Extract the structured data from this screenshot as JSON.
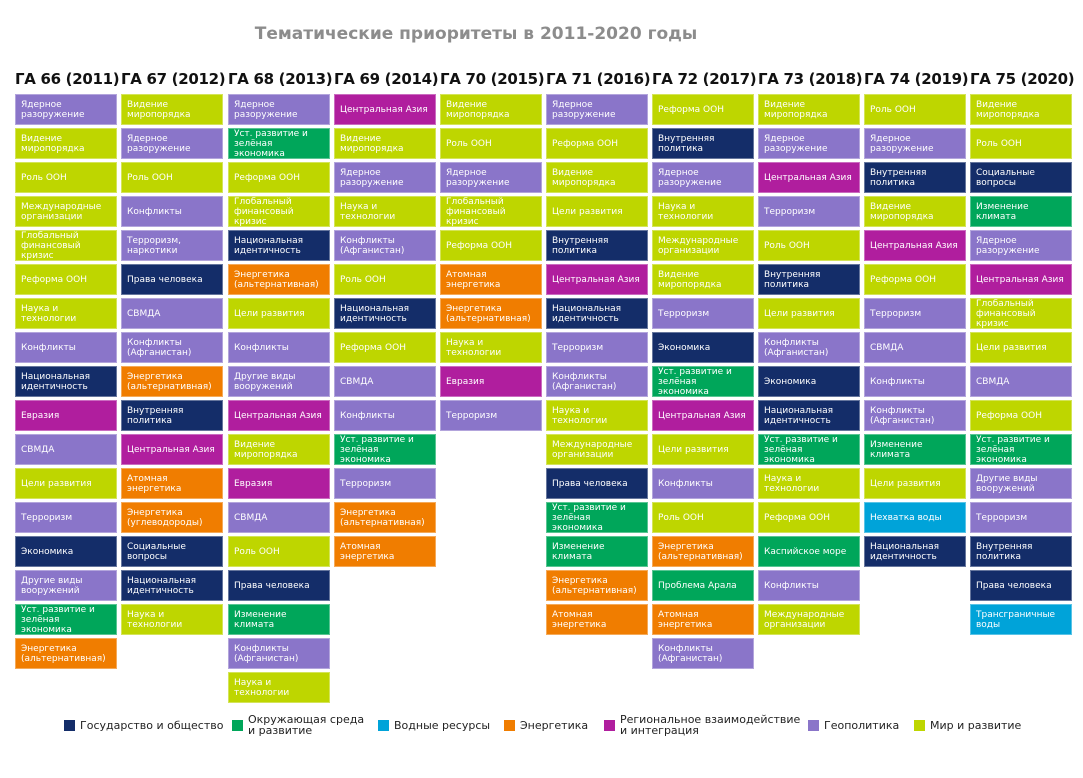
{
  "title": "Тематические приоритеты в 2011-2020 годы",
  "categories": {
    "S": {
      "label": "Государство и общество",
      "color": "#142d69"
    },
    "E": {
      "label": "Окружающая среда\nи развитие",
      "color": "#00a65a"
    },
    "W": {
      "label": "Водные ресурсы",
      "color": "#00a3d9"
    },
    "N": {
      "label": "Энергетика",
      "color": "#f07d00"
    },
    "R": {
      "label": "Региональное взаимодействие\nи интеграция",
      "color": "#b01e9e"
    },
    "G": {
      "label": "Геополитика",
      "color": "#8a75c9"
    },
    "M": {
      "label": "Мир и развитие",
      "color": "#bed600"
    }
  },
  "legend_order": [
    "S",
    "E",
    "W",
    "N",
    "R",
    "G",
    "M"
  ],
  "columns": [
    {
      "header": "ГА 66 (2011)",
      "items": [
        {
          "t": "Ядерное\nразоружение",
          "c": "G"
        },
        {
          "t": "Видение\nмиропорядка",
          "c": "M"
        },
        {
          "t": "Роль ООН",
          "c": "M"
        },
        {
          "t": "Международные\nорганизации",
          "c": "M"
        },
        {
          "t": "Глобальный\nфинансовый кризис",
          "c": "M"
        },
        {
          "t": "Реформа ООН",
          "c": "M"
        },
        {
          "t": "Наука и технологии",
          "c": "M"
        },
        {
          "t": "Конфликты",
          "c": "G"
        },
        {
          "t": "Национальная\nидентичность",
          "c": "S"
        },
        {
          "t": "Евразия",
          "c": "R"
        },
        {
          "t": "СВМДА",
          "c": "G"
        },
        {
          "t": "Цели развития",
          "c": "M"
        },
        {
          "t": "Терроризм",
          "c": "G"
        },
        {
          "t": "Экономика",
          "c": "S"
        },
        {
          "t": "Другие виды\nвооружений",
          "c": "G"
        },
        {
          "t": "Уст. развитие и\nзелёная экономика",
          "c": "E"
        },
        {
          "t": "Энергетика\n(альтернативная)",
          "c": "N"
        }
      ]
    },
    {
      "header": "ГА 67 (2012)",
      "items": [
        {
          "t": "Видение\nмиропорядка",
          "c": "M"
        },
        {
          "t": "Ядерное\nразоружение",
          "c": "G"
        },
        {
          "t": "Роль ООН",
          "c": "M"
        },
        {
          "t": "Конфликты",
          "c": "G"
        },
        {
          "t": "Терроризм,\nнаркотики",
          "c": "G"
        },
        {
          "t": "Права человека",
          "c": "S"
        },
        {
          "t": "СВМДА",
          "c": "G"
        },
        {
          "t": "Конфликты\n(Афганистан)",
          "c": "G"
        },
        {
          "t": "Энергетика\n(альтернативная)",
          "c": "N"
        },
        {
          "t": "Внутренняя\nполитика",
          "c": "S"
        },
        {
          "t": "Центральная Азия",
          "c": "R"
        },
        {
          "t": "Атомная энергетика",
          "c": "N"
        },
        {
          "t": "Энергетика\n(углеводороды)",
          "c": "N"
        },
        {
          "t": "Социальные\nвопросы",
          "c": "S"
        },
        {
          "t": "Национальная\nидентичность",
          "c": "S"
        },
        {
          "t": "Наука и технологии",
          "c": "M"
        }
      ]
    },
    {
      "header": "ГА 68 (2013)",
      "items": [
        {
          "t": "Ядерное\nразоружение",
          "c": "G"
        },
        {
          "t": "Уст. развитие и\nзелёная экономика",
          "c": "E"
        },
        {
          "t": "Реформа ООН",
          "c": "M"
        },
        {
          "t": "Глобальный\nфинансовый кризис",
          "c": "M"
        },
        {
          "t": "Национальная\nидентичность",
          "c": "S"
        },
        {
          "t": "Энергетика\n(альтернативная)",
          "c": "N"
        },
        {
          "t": "Цели развития",
          "c": "M"
        },
        {
          "t": "Конфликты",
          "c": "G"
        },
        {
          "t": "Другие виды\nвооружений",
          "c": "G"
        },
        {
          "t": "Центральная Азия",
          "c": "R"
        },
        {
          "t": "Видение\nмиропорядка",
          "c": "M"
        },
        {
          "t": "Евразия",
          "c": "R"
        },
        {
          "t": "СВМДА",
          "c": "G"
        },
        {
          "t": "Роль ООН",
          "c": "M"
        },
        {
          "t": "Права человека",
          "c": "S"
        },
        {
          "t": "Изменение климата",
          "c": "E"
        },
        {
          "t": "Конфликты\n(Афганистан)",
          "c": "G"
        },
        {
          "t": "Наука и технологии",
          "c": "M"
        }
      ]
    },
    {
      "header": "ГА 69 (2014)",
      "items": [
        {
          "t": "Центральная Азия",
          "c": "R"
        },
        {
          "t": "Видение\nмиропорядка",
          "c": "M"
        },
        {
          "t": "Ядерное\nразоружение",
          "c": "G"
        },
        {
          "t": "Наука и технологии",
          "c": "M"
        },
        {
          "t": "Конфликты\n(Афганистан)",
          "c": "G"
        },
        {
          "t": "Роль ООН",
          "c": "M"
        },
        {
          "t": "Национальная\nидентичность",
          "c": "S"
        },
        {
          "t": "Реформа ООН",
          "c": "M"
        },
        {
          "t": "СВМДА",
          "c": "G"
        },
        {
          "t": "Конфликты",
          "c": "G"
        },
        {
          "t": "Уст. развитие и\nзелёная экономика",
          "c": "E"
        },
        {
          "t": "Терроризм",
          "c": "G"
        },
        {
          "t": "Энергетика\n(альтернативная)",
          "c": "N"
        },
        {
          "t": "Атомная энергетика",
          "c": "N"
        }
      ]
    },
    {
      "header": "ГА 70 (2015)",
      "items": [
        {
          "t": "Видение\nмиропорядка",
          "c": "M"
        },
        {
          "t": "Роль ООН",
          "c": "M"
        },
        {
          "t": "Ядерное\nразоружение",
          "c": "G"
        },
        {
          "t": "Глобальный\nфинансовый кризис",
          "c": "M"
        },
        {
          "t": "Реформа ООН",
          "c": "M"
        },
        {
          "t": "Атомная энергетика",
          "c": "N"
        },
        {
          "t": "Энергетика\n(альтернативная)",
          "c": "N"
        },
        {
          "t": "Наука и технологии",
          "c": "M"
        },
        {
          "t": "Евразия",
          "c": "R"
        },
        {
          "t": "Терроризм",
          "c": "G"
        }
      ]
    },
    {
      "header": "ГА 71 (2016)",
      "items": [
        {
          "t": "Ядерное\nразоружение",
          "c": "G"
        },
        {
          "t": "Реформа ООН",
          "c": "M"
        },
        {
          "t": "Видение\nмиропорядка",
          "c": "M"
        },
        {
          "t": "Цели развития",
          "c": "M"
        },
        {
          "t": "Внутренняя\nполитика",
          "c": "S"
        },
        {
          "t": "Центральная Азия",
          "c": "R"
        },
        {
          "t": "Национальная\nидентичность",
          "c": "S"
        },
        {
          "t": "Терроризм",
          "c": "G"
        },
        {
          "t": "Конфликты\n(Афганистан)",
          "c": "G"
        },
        {
          "t": "Наука и технологии",
          "c": "M"
        },
        {
          "t": "Международные\nорганизации",
          "c": "M"
        },
        {
          "t": "Права человека",
          "c": "S"
        },
        {
          "t": "Уст. развитие и\nзелёная экономика",
          "c": "E"
        },
        {
          "t": "Изменение климата",
          "c": "E"
        },
        {
          "t": "Энергетика\n(альтернативная)",
          "c": "N"
        },
        {
          "t": "Атомная энергетика",
          "c": "N"
        }
      ]
    },
    {
      "header": "ГА 72 (2017)",
      "items": [
        {
          "t": "Реформа ООН",
          "c": "M"
        },
        {
          "t": "Внутренняя\nполитика",
          "c": "S"
        },
        {
          "t": "Ядерное\nразоружение",
          "c": "G"
        },
        {
          "t": "Наука и технологии",
          "c": "M"
        },
        {
          "t": "Международные\nорганизации",
          "c": "M"
        },
        {
          "t": "Видение\nмиропорядка",
          "c": "M"
        },
        {
          "t": "Терроризм",
          "c": "G"
        },
        {
          "t": "Экономика",
          "c": "S"
        },
        {
          "t": "Уст. развитие и\nзелёная экономика",
          "c": "E"
        },
        {
          "t": "Центральная Азия",
          "c": "R"
        },
        {
          "t": "Цели развития",
          "c": "M"
        },
        {
          "t": "Конфликты",
          "c": "G"
        },
        {
          "t": "Роль ООН",
          "c": "M"
        },
        {
          "t": "Энергетика\n(альтернативная)",
          "c": "N"
        },
        {
          "t": "Проблема Арала",
          "c": "E"
        },
        {
          "t": "Атомная энергетика",
          "c": "N"
        },
        {
          "t": "Конфликты\n(Афганистан)",
          "c": "G"
        }
      ]
    },
    {
      "header": "ГА 73 (2018)",
      "items": [
        {
          "t": "Видение\nмиропорядка",
          "c": "M"
        },
        {
          "t": "Ядерное\nразоружение",
          "c": "G"
        },
        {
          "t": "Центральная Азия",
          "c": "R"
        },
        {
          "t": "Терроризм",
          "c": "G"
        },
        {
          "t": "Роль ООН",
          "c": "M"
        },
        {
          "t": "Внутренняя\nполитика",
          "c": "S"
        },
        {
          "t": "Цели развития",
          "c": "M"
        },
        {
          "t": "Конфликты\n(Афганистан)",
          "c": "G"
        },
        {
          "t": "Экономика",
          "c": "S"
        },
        {
          "t": "Национальная\nидентичность",
          "c": "S"
        },
        {
          "t": "Уст. развитие и\nзелёная экономика",
          "c": "E"
        },
        {
          "t": "Наука и технологии",
          "c": "M"
        },
        {
          "t": "Реформа ООН",
          "c": "M"
        },
        {
          "t": "Каспийское море",
          "c": "E"
        },
        {
          "t": "Конфликты",
          "c": "G"
        },
        {
          "t": "Международные\nорганизации",
          "c": "M"
        }
      ]
    },
    {
      "header": "ГА 74 (2019)",
      "items": [
        {
          "t": "Роль ООН",
          "c": "M"
        },
        {
          "t": "Ядерное\nразоружение",
          "c": "G"
        },
        {
          "t": "Внутренняя\nполитика",
          "c": "S"
        },
        {
          "t": "Видение\nмиропорядка",
          "c": "M"
        },
        {
          "t": "Центральная Азия",
          "c": "R"
        },
        {
          "t": "Реформа ООН",
          "c": "M"
        },
        {
          "t": "Терроризм",
          "c": "G"
        },
        {
          "t": "СВМДА",
          "c": "G"
        },
        {
          "t": "Конфликты",
          "c": "G"
        },
        {
          "t": "Конфликты\n(Афганистан)",
          "c": "G"
        },
        {
          "t": "Изменение климата",
          "c": "E"
        },
        {
          "t": "Цели развития",
          "c": "M"
        },
        {
          "t": "Нехватка воды",
          "c": "W"
        },
        {
          "t": "Национальная\nидентичность",
          "c": "S"
        }
      ]
    },
    {
      "header": "ГА 75 (2020)",
      "items": [
        {
          "t": "Видение\nмиропорядка",
          "c": "M"
        },
        {
          "t": "Роль ООН",
          "c": "M"
        },
        {
          "t": "Социальные\nвопросы",
          "c": "S"
        },
        {
          "t": "Изменение климата",
          "c": "E"
        },
        {
          "t": "Ядерное\nразоружение",
          "c": "G"
        },
        {
          "t": "Центральная Азия",
          "c": "R"
        },
        {
          "t": "Глобальный\nфинансовый кризис",
          "c": "M"
        },
        {
          "t": "Цели развития",
          "c": "M"
        },
        {
          "t": "СВМДА",
          "c": "G"
        },
        {
          "t": "Реформа ООН",
          "c": "M"
        },
        {
          "t": "Уст. развитие и\nзелёная экономика",
          "c": "E"
        },
        {
          "t": "Другие виды\nвооружений",
          "c": "G"
        },
        {
          "t": "Терроризм",
          "c": "G"
        },
        {
          "t": "Внутренняя\nполитика",
          "c": "S"
        },
        {
          "t": "Права человека",
          "c": "S"
        },
        {
          "t": "Трансграничные\nводы",
          "c": "W"
        }
      ]
    }
  ]
}
